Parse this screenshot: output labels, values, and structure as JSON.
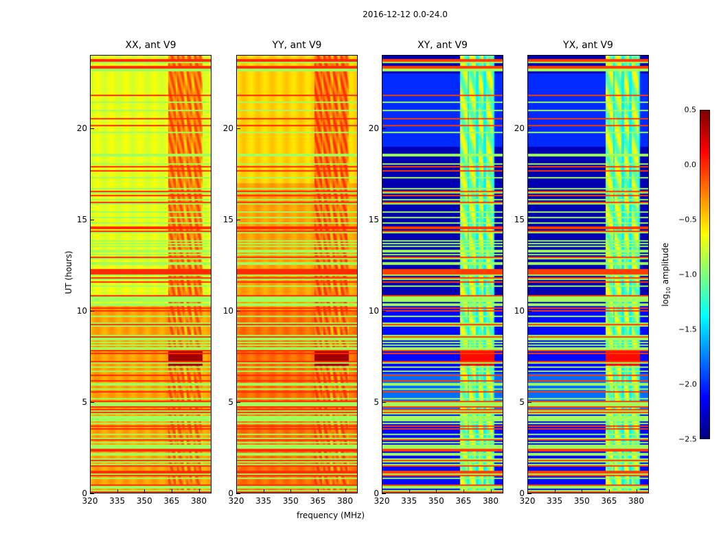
{
  "chart_data": {
    "type": "heatmap",
    "title": "2016-12-12 0.0-24.0",
    "xlabel": "frequency (MHz)",
    "ylabel": "UT (hours)",
    "xlim": [
      320,
      387
    ],
    "ylim": [
      0,
      24
    ],
    "xticks": [
      "320",
      "335",
      "350",
      "365",
      "380"
    ],
    "yticks": [
      "0",
      "5",
      "10",
      "15",
      "20"
    ],
    "colorbar": {
      "label_main": "log",
      "label_sub": "10",
      "label_rest": " amplitude",
      "range": [
        -2.5,
        0.5
      ],
      "ticks": [
        "0.5",
        "0.0",
        "−0.5",
        "−1.0",
        "−1.5",
        "−2.0",
        "−2.5"
      ],
      "colormap": "jet"
    },
    "rfi_band_mhz": [
      363,
      382
    ],
    "panels": [
      {
        "title": "XX, ant V9",
        "base": -0.7,
        "band": -0.25,
        "lower_base": -0.35
      },
      {
        "title": "YY, ant V9",
        "base": -0.5,
        "band": -0.2,
        "lower_base": -0.2
      },
      {
        "title": "XY, ant V9",
        "base": -2.35,
        "band": -1.0,
        "lower_base": -2.1
      },
      {
        "title": "YX, ant V9",
        "base": -2.35,
        "band": -1.0,
        "lower_base": -2.1
      }
    ]
  }
}
